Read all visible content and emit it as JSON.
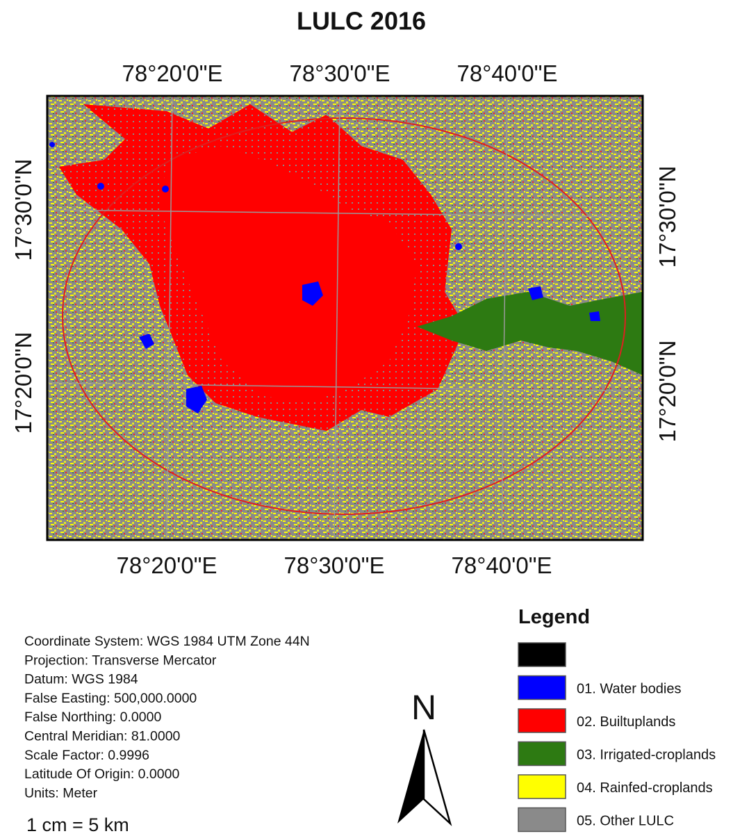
{
  "title": "LULC 2016",
  "graticule": {
    "top_labels": [
      "78°20'0\"E",
      "78°30'0\"E",
      "78°40'0\"E"
    ],
    "bottom_labels": [
      "78°20'0\"E",
      "78°30'0\"E",
      "78°40'0\"E"
    ],
    "left_labels": [
      "17°30'0\"N",
      "17°20'0\"N"
    ],
    "right_labels": [
      "17°30'0\"N",
      "17°20'0\"N"
    ]
  },
  "info": [
    "Coordinate System: WGS 1984 UTM Zone 44N",
    "Projection: Transverse Mercator",
    "Datum: WGS 1984",
    "False Easting: 500,000.0000",
    "False Northing: 0.0000",
    "Central Meridian: 81.0000",
    "Scale Factor: 0.9996",
    "Latitude Of Origin: 0.0000",
    "Units: Meter"
  ],
  "scale": "1 cm = 5 km",
  "north": "N",
  "legend": {
    "title": "Legend",
    "items": [
      {
        "color": "#000000"
      },
      {
        "label": "01. Water bodies",
        "color": "#0000ff"
      },
      {
        "label": "02. Builtuplands",
        "color": "#ff0000"
      },
      {
        "label": "03. Irrigated-croplands",
        "color": "#2d7a12"
      },
      {
        "label": "04. Rainfed-croplands",
        "color": "#ffff00"
      },
      {
        "label": "05. Other LULC",
        "color": "#8a8a8a"
      }
    ]
  }
}
